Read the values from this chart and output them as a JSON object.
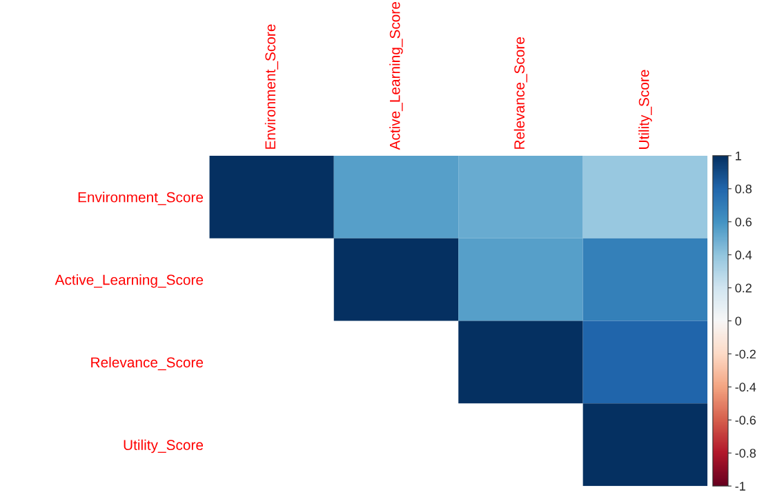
{
  "chart_data": {
    "type": "heatmap",
    "categories": [
      "Environment_Score",
      "Active_Learning_Score",
      "Relevance_Score",
      "Utility_Score"
    ],
    "y_categories": [
      "Environment_Score",
      "Active_Learning_Score",
      "Relevance_Score",
      "Utility_Score"
    ],
    "cells": [
      [
        1,
        0.55,
        0.5,
        0.38
      ],
      [
        null,
        1,
        0.55,
        0.68
      ],
      [
        null,
        null,
        1,
        0.8
      ],
      [
        null,
        null,
        null,
        1
      ]
    ],
    "clim": [
      -1,
      1
    ],
    "cticks": [
      -1,
      -0.8,
      -0.6,
      -0.4,
      -0.2,
      0,
      0.2,
      0.4,
      0.6,
      0.8,
      1
    ]
  }
}
